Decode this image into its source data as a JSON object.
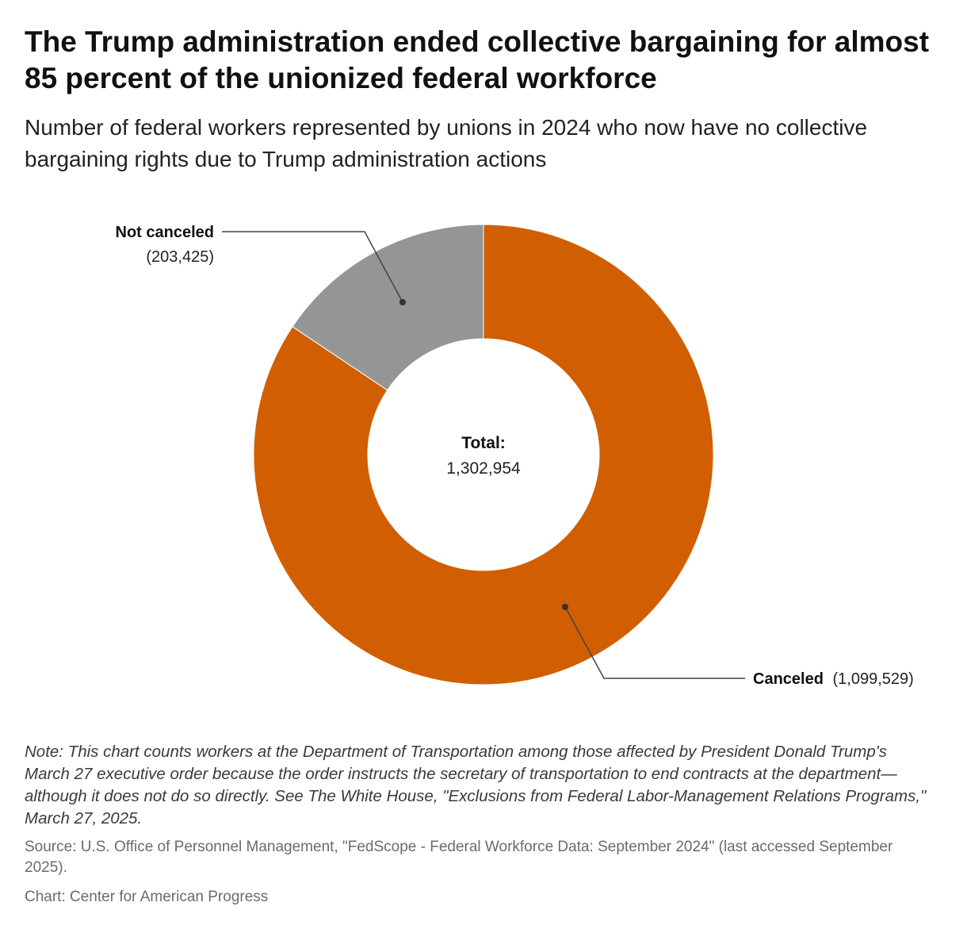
{
  "title": "The Trump administration ended collective bargaining for almost 85 percent of the unionized federal workforce",
  "subtitle": "Number of federal workers represented by unions in 2024 who now have no collective bargaining rights due to Trump administration actions",
  "chart_data": {
    "type": "pie",
    "donut": true,
    "slices": [
      {
        "name": "Canceled",
        "value": 1099529,
        "value_label": "(1,099,529)",
        "color": "#d15e00"
      },
      {
        "name": "Not canceled",
        "value": 203425,
        "value_label": "(203,425)",
        "color": "#959595"
      }
    ],
    "center_label": "Total:",
    "center_value": "1,302,954"
  },
  "note": "Note: This chart counts workers at the Department of Transportation among those affected by President Donald Trump's March 27 executive order because the order instructs the secretary of transportation to end contracts at the department—although it does not do so directly. See The White House, \"Exclusions from Federal Labor-Management Relations Programs,\" March 27, 2025.",
  "source": "Source: U.S. Office of Personnel Management, \"FedScope - Federal Workforce Data: September 2024\" (last accessed September 2025).",
  "credit": "Chart: Center for American Progress"
}
